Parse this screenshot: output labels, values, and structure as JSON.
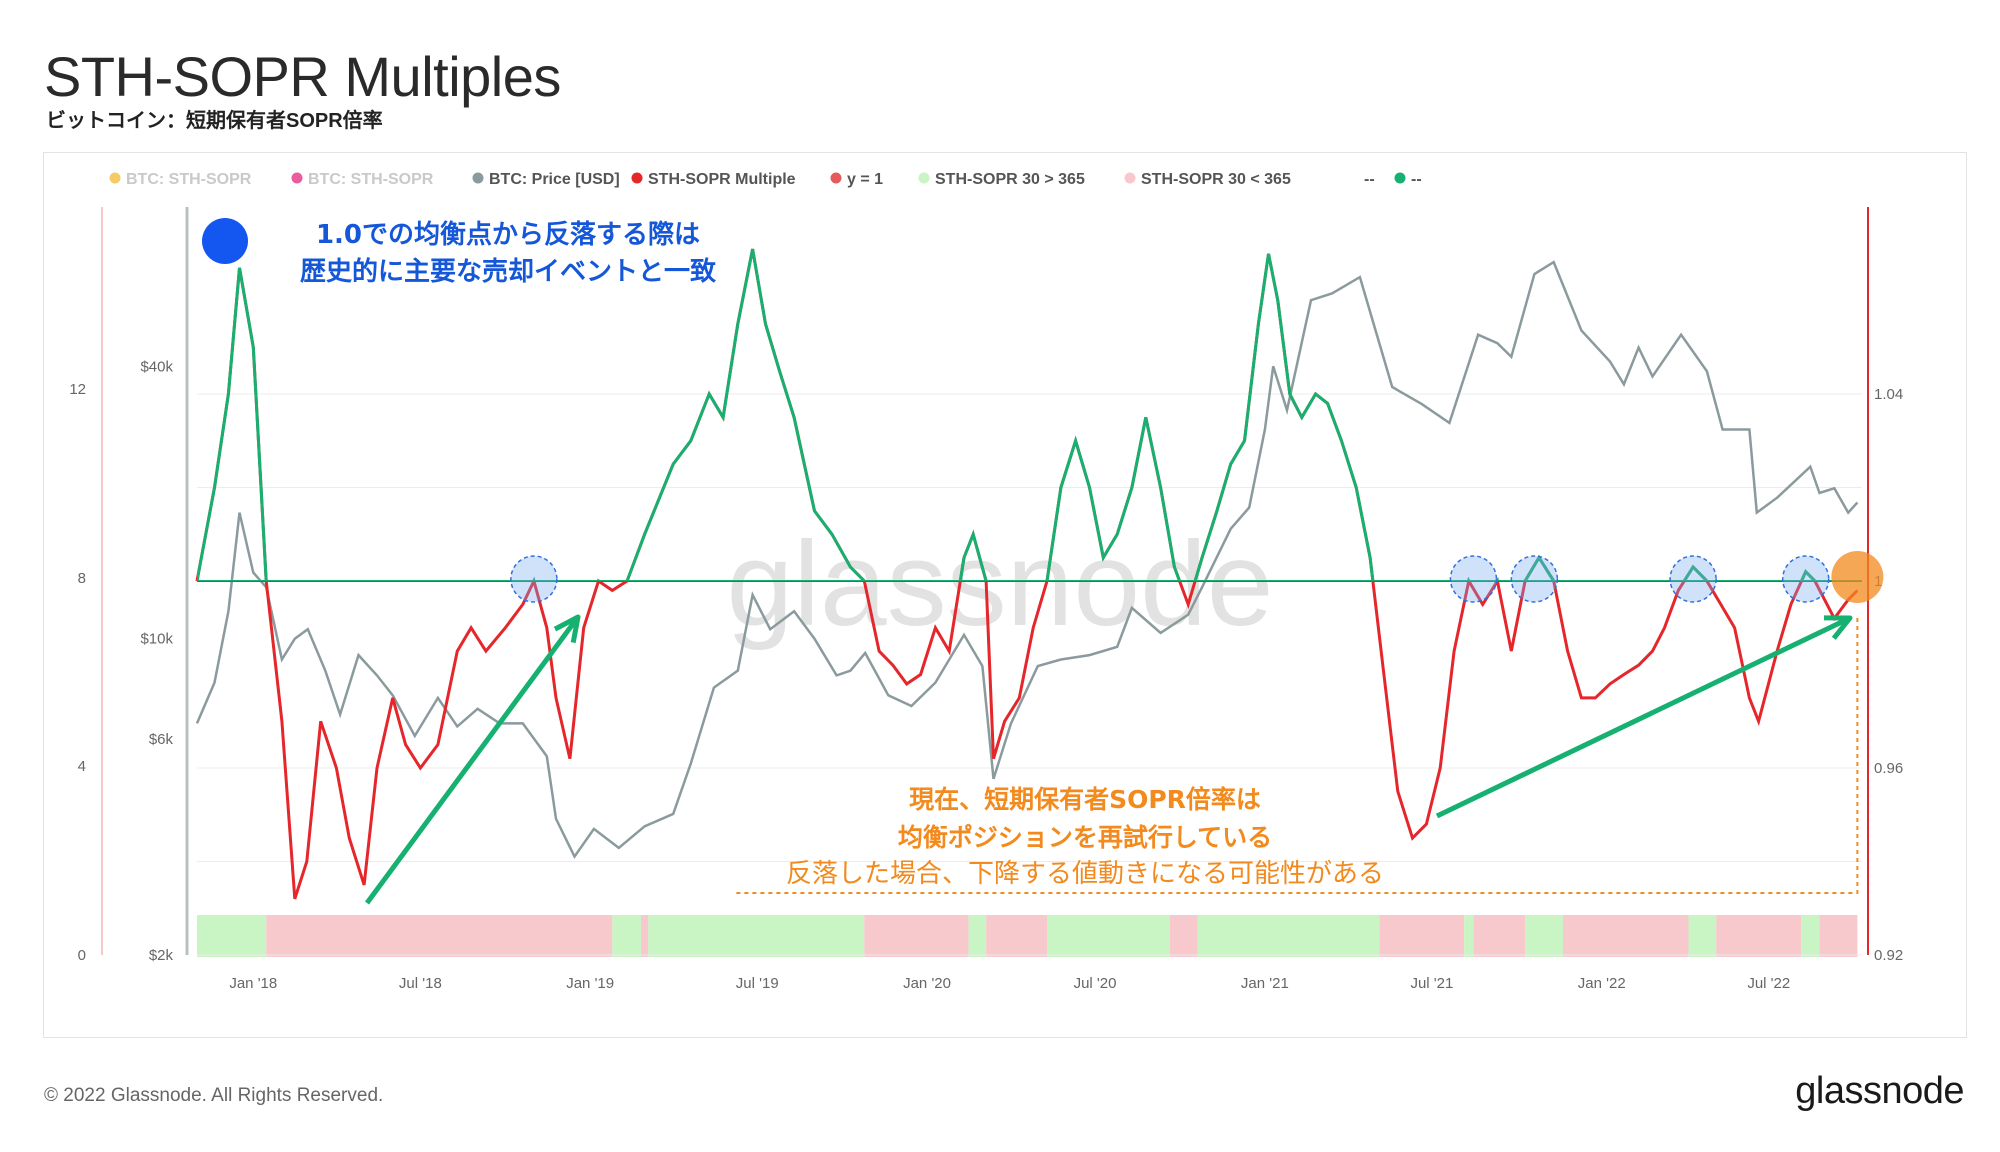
{
  "header": {
    "title": "STH-SOPR Multiples",
    "subtitle": "ビットコイン：短期保有者SOPR倍率"
  },
  "footer": {
    "copyright": "© 2022 Glassnode. All Rights Reserved.",
    "brand": "glassnode"
  },
  "watermark": "glassnode",
  "colors": {
    "multiple_line": "#e5262b",
    "multiple_above": "#16b070",
    "price_line": "#8b9a9d",
    "baseline": "#e5262b",
    "band_green": "#c9f5c4",
    "band_red": "#f8c9cc",
    "annotation_blue": "#1457d8",
    "annotation_orange": "#f28a1e",
    "arrow_green": "#16b070"
  },
  "annotations": {
    "blue_line1": "1.0での均衡点から反落する際は",
    "blue_line2": "歴史的に主要な売却イベントと一致",
    "orange_line1": "現在、短期保有者SOPR倍率は",
    "orange_line2": "均衡ポジションを再試行している",
    "orange_line3": "反落した場合、下降する値動きになる可能性がある"
  },
  "chart_data": {
    "type": "line",
    "legend": [
      {
        "label": "BTC: STH-SOPR",
        "color": "#f2c24a",
        "muted": true
      },
      {
        "label": "BTC: STH-SOPR",
        "color": "#e83e8c",
        "muted": true
      },
      {
        "label": "BTC: Price [USD]",
        "color": "#8b9a9d",
        "muted": false
      },
      {
        "label": "STH-SOPR Multiple",
        "color": "#e5262b",
        "muted": false
      },
      {
        "label": "y = 1",
        "color": "#e55b5b",
        "muted": false
      },
      {
        "label": "STH-SOPR 30 > 365",
        "color": "#c9f5c4",
        "muted": false
      },
      {
        "label": "STH-SOPR 30 < 365",
        "color": "#f8c9cc",
        "muted": false
      },
      {
        "label": "--",
        "color": "none",
        "muted": false
      },
      {
        "label": "--",
        "color": "#16b070",
        "muted": false
      }
    ],
    "x_ticks": [
      "Jan '18",
      "Jul '18",
      "Jan '19",
      "Jul '19",
      "Jan '20",
      "Jul '20",
      "Jan '21",
      "Jul '21",
      "Jan '22",
      "Jul '22"
    ],
    "y_left_ticks": [
      "0",
      "4",
      "8",
      "12"
    ],
    "y_price_ticks": [
      "$2k",
      "$6k",
      "$10k",
      "$40k"
    ],
    "y_right_ticks": [
      "0.92",
      "0.96",
      "1",
      "1.04"
    ],
    "y_right_range": [
      0.92,
      1.08
    ],
    "baseline_y": 1.0,
    "x_range": [
      "2017-11",
      "2022-10"
    ],
    "series": [
      {
        "name": "STH-SOPR Multiple",
        "points": [
          [
            "2017-11-01",
            1.0
          ],
          [
            "2017-11-20",
            1.02
          ],
          [
            "2017-12-05",
            1.04
          ],
          [
            "2017-12-17",
            1.067
          ],
          [
            "2018-01-01",
            1.05
          ],
          [
            "2018-01-15",
            1.0
          ],
          [
            "2018-02-01",
            0.97
          ],
          [
            "2018-02-15",
            0.932
          ],
          [
            "2018-02-28",
            0.94
          ],
          [
            "2018-03-15",
            0.97
          ],
          [
            "2018-04-01",
            0.96
          ],
          [
            "2018-04-15",
            0.945
          ],
          [
            "2018-05-01",
            0.935
          ],
          [
            "2018-05-15",
            0.96
          ],
          [
            "2018-06-01",
            0.975
          ],
          [
            "2018-06-15",
            0.965
          ],
          [
            "2018-07-01",
            0.96
          ],
          [
            "2018-07-20",
            0.965
          ],
          [
            "2018-08-10",
            0.985
          ],
          [
            "2018-08-25",
            0.99
          ],
          [
            "2018-09-10",
            0.985
          ],
          [
            "2018-10-01",
            0.99
          ],
          [
            "2018-10-20",
            0.995
          ],
          [
            "2018-11-01",
            1.0
          ],
          [
            "2018-11-15",
            0.99
          ],
          [
            "2018-11-25",
            0.975
          ],
          [
            "2018-12-10",
            0.962
          ],
          [
            "2018-12-25",
            0.99
          ],
          [
            "2019-01-10",
            1.0
          ],
          [
            "2019-01-25",
            0.998
          ],
          [
            "2019-02-10",
            1.0
          ],
          [
            "2019-03-01",
            1.01
          ],
          [
            "2019-04-01",
            1.025
          ],
          [
            "2019-04-20",
            1.03
          ],
          [
            "2019-05-10",
            1.04
          ],
          [
            "2019-05-25",
            1.035
          ],
          [
            "2019-06-10",
            1.055
          ],
          [
            "2019-06-26",
            1.071
          ],
          [
            "2019-07-10",
            1.055
          ],
          [
            "2019-07-25",
            1.045
          ],
          [
            "2019-08-10",
            1.035
          ],
          [
            "2019-09-01",
            1.015
          ],
          [
            "2019-09-20",
            1.01
          ],
          [
            "2019-10-10",
            1.003
          ],
          [
            "2019-10-25",
            1.0
          ],
          [
            "2019-11-10",
            0.985
          ],
          [
            "2019-11-25",
            0.982
          ],
          [
            "2019-12-10",
            0.978
          ],
          [
            "2019-12-25",
            0.98
          ],
          [
            "2020-01-10",
            0.99
          ],
          [
            "2020-01-25",
            0.985
          ],
          [
            "2020-02-10",
            1.005
          ],
          [
            "2020-02-20",
            1.01
          ],
          [
            "2020-03-05",
            1.0
          ],
          [
            "2020-03-13",
            0.962
          ],
          [
            "2020-03-25",
            0.97
          ],
          [
            "2020-04-10",
            0.975
          ],
          [
            "2020-04-25",
            0.99
          ],
          [
            "2020-05-10",
            1.0
          ],
          [
            "2020-05-25",
            1.02
          ],
          [
            "2020-06-10",
            1.03
          ],
          [
            "2020-06-25",
            1.02
          ],
          [
            "2020-07-10",
            1.005
          ],
          [
            "2020-07-25",
            1.01
          ],
          [
            "2020-08-10",
            1.02
          ],
          [
            "2020-08-25",
            1.035
          ],
          [
            "2020-09-10",
            1.02
          ],
          [
            "2020-09-25",
            1.003
          ],
          [
            "2020-10-10",
            0.995
          ],
          [
            "2020-10-25",
            1.005
          ],
          [
            "2020-11-10",
            1.015
          ],
          [
            "2020-11-25",
            1.025
          ],
          [
            "2020-12-10",
            1.03
          ],
          [
            "2020-12-25",
            1.055
          ],
          [
            "2021-01-05",
            1.07
          ],
          [
            "2021-01-15",
            1.06
          ],
          [
            "2021-01-28",
            1.04
          ],
          [
            "2021-02-10",
            1.035
          ],
          [
            "2021-02-25",
            1.04
          ],
          [
            "2021-03-10",
            1.038
          ],
          [
            "2021-03-25",
            1.03
          ],
          [
            "2021-04-10",
            1.02
          ],
          [
            "2021-04-25",
            1.005
          ],
          [
            "2021-05-10",
            0.98
          ],
          [
            "2021-05-25",
            0.955
          ],
          [
            "2021-06-10",
            0.945
          ],
          [
            "2021-06-25",
            0.948
          ],
          [
            "2021-07-10",
            0.96
          ],
          [
            "2021-07-25",
            0.985
          ],
          [
            "2021-08-10",
            1.0
          ],
          [
            "2021-08-25",
            0.995
          ],
          [
            "2021-09-10",
            1.0
          ],
          [
            "2021-09-25",
            0.985
          ],
          [
            "2021-10-10",
            1.0
          ],
          [
            "2021-10-25",
            1.005
          ],
          [
            "2021-11-10",
            1.0
          ],
          [
            "2021-11-25",
            0.985
          ],
          [
            "2021-12-10",
            0.975
          ],
          [
            "2021-12-25",
            0.975
          ],
          [
            "2022-01-10",
            0.978
          ],
          [
            "2022-01-25",
            0.98
          ],
          [
            "2022-02-10",
            0.982
          ],
          [
            "2022-02-25",
            0.985
          ],
          [
            "2022-03-10",
            0.99
          ],
          [
            "2022-03-25",
            0.998
          ],
          [
            "2022-04-10",
            1.003
          ],
          [
            "2022-04-25",
            1.0
          ],
          [
            "2022-05-10",
            0.995
          ],
          [
            "2022-05-25",
            0.99
          ],
          [
            "2022-06-10",
            0.975
          ],
          [
            "2022-06-20",
            0.97
          ],
          [
            "2022-07-10",
            0.985
          ],
          [
            "2022-07-25",
            0.995
          ],
          [
            "2022-08-10",
            1.002
          ],
          [
            "2022-08-20",
            1.0
          ],
          [
            "2022-09-10",
            0.992
          ],
          [
            "2022-09-25",
            0.996
          ],
          [
            "2022-10-05",
            0.998
          ]
        ]
      },
      {
        "name": "BTC: Price [USD]",
        "points": [
          [
            "2017-11-01",
            6500
          ],
          [
            "2017-11-20",
            8000
          ],
          [
            "2017-12-05",
            11500
          ],
          [
            "2017-12-17",
            19000
          ],
          [
            "2018-01-01",
            14000
          ],
          [
            "2018-01-15",
            13000
          ],
          [
            "2018-02-01",
            9000
          ],
          [
            "2018-02-15",
            10000
          ],
          [
            "2018-03-01",
            10500
          ],
          [
            "2018-03-20",
            8500
          ],
          [
            "2018-04-05",
            6800
          ],
          [
            "2018-04-25",
            9200
          ],
          [
            "2018-05-15",
            8300
          ],
          [
            "2018-06-01",
            7500
          ],
          [
            "2018-06-25",
            6100
          ],
          [
            "2018-07-20",
            7400
          ],
          [
            "2018-08-10",
            6400
          ],
          [
            "2018-09-01",
            7000
          ],
          [
            "2018-09-25",
            6500
          ],
          [
            "2018-10-20",
            6500
          ],
          [
            "2018-11-15",
            5500
          ],
          [
            "2018-11-25",
            4000
          ],
          [
            "2018-12-15",
            3300
          ],
          [
            "2019-01-05",
            3800
          ],
          [
            "2019-02-01",
            3450
          ],
          [
            "2019-03-01",
            3850
          ],
          [
            "2019-04-01",
            4100
          ],
          [
            "2019-04-20",
            5300
          ],
          [
            "2019-05-15",
            7800
          ],
          [
            "2019-06-10",
            8500
          ],
          [
            "2019-06-26",
            12500
          ],
          [
            "2019-07-15",
            10500
          ],
          [
            "2019-08-10",
            11500
          ],
          [
            "2019-09-01",
            10000
          ],
          [
            "2019-09-25",
            8300
          ],
          [
            "2019-10-10",
            8500
          ],
          [
            "2019-10-26",
            9300
          ],
          [
            "2019-11-20",
            7500
          ],
          [
            "2019-12-15",
            7100
          ],
          [
            "2020-01-10",
            8000
          ],
          [
            "2020-02-10",
            10200
          ],
          [
            "2020-03-01",
            8700
          ],
          [
            "2020-03-13",
            4900
          ],
          [
            "2020-04-01",
            6500
          ],
          [
            "2020-04-30",
            8700
          ],
          [
            "2020-05-25",
            9000
          ],
          [
            "2020-06-25",
            9200
          ],
          [
            "2020-07-25",
            9600
          ],
          [
            "2020-08-10",
            11700
          ],
          [
            "2020-09-10",
            10300
          ],
          [
            "2020-10-10",
            11300
          ],
          [
            "2020-10-25",
            13000
          ],
          [
            "2020-11-25",
            17500
          ],
          [
            "2020-12-15",
            19500
          ],
          [
            "2021-01-01",
            29000
          ],
          [
            "2021-01-10",
            40000
          ],
          [
            "2021-01-25",
            32000
          ],
          [
            "2021-02-20",
            56000
          ],
          [
            "2021-03-15",
            58000
          ],
          [
            "2021-04-14",
            63000
          ],
          [
            "2021-05-19",
            36000
          ],
          [
            "2021-06-20",
            33000
          ],
          [
            "2021-07-20",
            30000
          ],
          [
            "2021-08-20",
            47000
          ],
          [
            "2021-09-10",
            45000
          ],
          [
            "2021-09-25",
            42000
          ],
          [
            "2021-10-20",
            64000
          ],
          [
            "2021-11-10",
            68000
          ],
          [
            "2021-12-10",
            48000
          ],
          [
            "2022-01-10",
            41000
          ],
          [
            "2022-01-25",
            36500
          ],
          [
            "2022-02-10",
            44000
          ],
          [
            "2022-02-25",
            38000
          ],
          [
            "2022-03-28",
            47000
          ],
          [
            "2022-04-25",
            39000
          ],
          [
            "2022-05-12",
            29000
          ],
          [
            "2022-06-10",
            29000
          ],
          [
            "2022-06-18",
            19000
          ],
          [
            "2022-07-10",
            20500
          ],
          [
            "2022-08-15",
            24000
          ],
          [
            "2022-08-25",
            21000
          ],
          [
            "2022-09-10",
            21500
          ],
          [
            "2022-09-25",
            19000
          ],
          [
            "2022-10-05",
            20000
          ]
        ]
      }
    ],
    "bands": [
      {
        "from": "2017-11-01",
        "to": "2018-01-15",
        "state": "30 > 365"
      },
      {
        "from": "2018-01-15",
        "to": "2019-01-25",
        "state": "30 < 365"
      },
      {
        "from": "2019-01-25",
        "to": "2019-02-25",
        "state": "30 > 365"
      },
      {
        "from": "2019-02-25",
        "to": "2019-03-05",
        "state": "30 < 365"
      },
      {
        "from": "2019-03-05",
        "to": "2019-10-25",
        "state": "30 > 365"
      },
      {
        "from": "2019-10-25",
        "to": "2020-02-15",
        "state": "30 < 365"
      },
      {
        "from": "2020-02-15",
        "to": "2020-03-05",
        "state": "30 > 365"
      },
      {
        "from": "2020-03-05",
        "to": "2020-05-10",
        "state": "30 < 365"
      },
      {
        "from": "2020-05-10",
        "to": "2020-09-20",
        "state": "30 > 365"
      },
      {
        "from": "2020-09-20",
        "to": "2020-10-20",
        "state": "30 < 365"
      },
      {
        "from": "2020-10-20",
        "to": "2021-05-05",
        "state": "30 > 365"
      },
      {
        "from": "2021-05-05",
        "to": "2021-08-05",
        "state": "30 < 365"
      },
      {
        "from": "2021-08-05",
        "to": "2021-08-15",
        "state": "30 > 365"
      },
      {
        "from": "2021-08-15",
        "to": "2021-10-10",
        "state": "30 < 365"
      },
      {
        "from": "2021-10-10",
        "to": "2021-11-20",
        "state": "30 > 365"
      },
      {
        "from": "2021-11-20",
        "to": "2022-04-05",
        "state": "30 < 365"
      },
      {
        "from": "2022-04-05",
        "to": "2022-05-05",
        "state": "30 > 365"
      },
      {
        "from": "2022-05-05",
        "to": "2022-08-05",
        "state": "30 < 365"
      },
      {
        "from": "2022-08-05",
        "to": "2022-08-25",
        "state": "30 > 365"
      },
      {
        "from": "2022-08-25",
        "to": "2022-10-05",
        "state": "30 < 365"
      }
    ],
    "highlight_points": [
      "2018-11-01",
      "2021-08-15",
      "2021-10-20",
      "2022-04-10",
      "2022-08-10"
    ],
    "current_point": "2022-10-05",
    "grid": true
  }
}
